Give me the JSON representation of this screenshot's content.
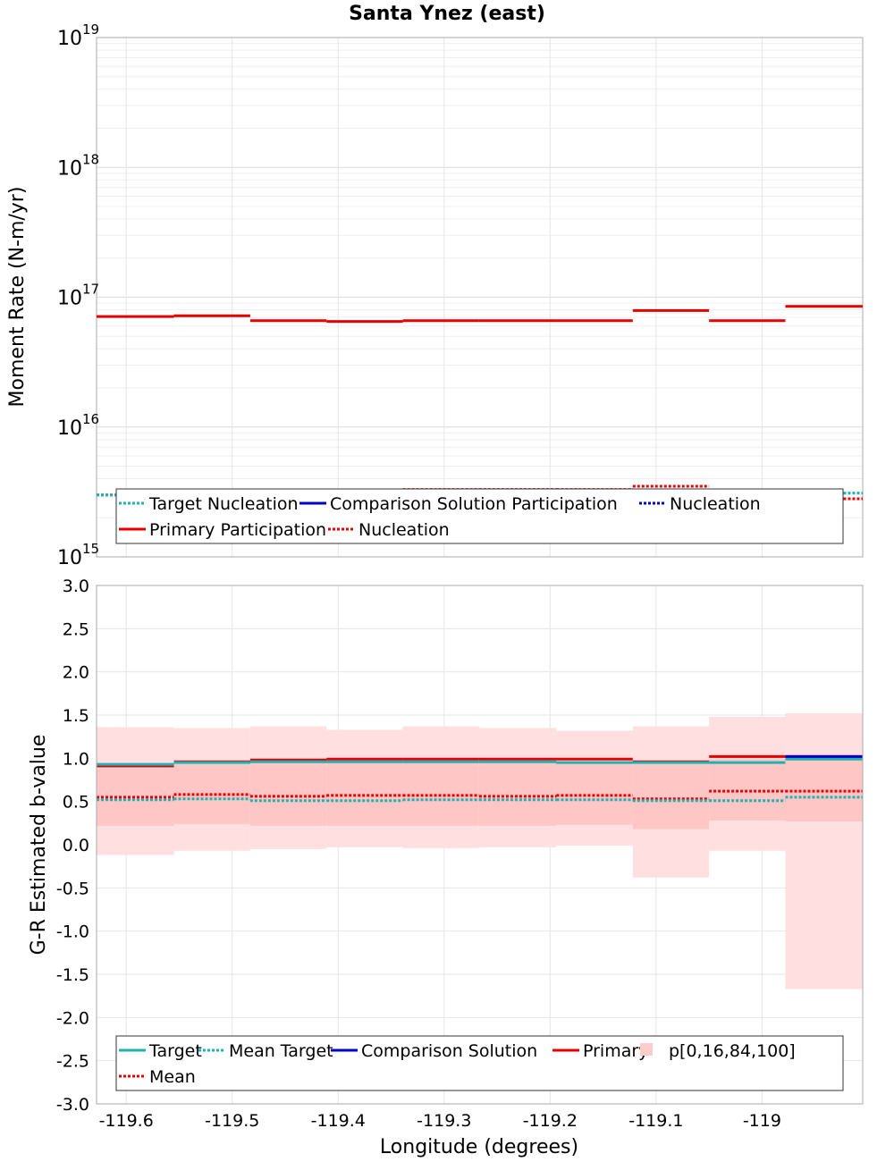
{
  "chart_data": [
    {
      "type": "line",
      "title": "Santa Ynez (east)",
      "ylabel": "Moment Rate (N-m/yr)",
      "yscale": "log",
      "ylim": [
        1000000000000000.0,
        1e+19
      ],
      "y_ticks": [
        {
          "base": "10",
          "exp": "15",
          "value": 1000000000000000.0
        },
        {
          "base": "10",
          "exp": "16",
          "value": 1e+16
        },
        {
          "base": "10",
          "exp": "17",
          "value": 1e+17
        },
        {
          "base": "10",
          "exp": "18",
          "value": 1e+18
        },
        {
          "base": "10",
          "exp": "19",
          "value": 1e+19
        }
      ],
      "x_edges": [
        -119.628,
        -119.555,
        -119.483,
        -119.411,
        -119.339,
        -119.267,
        -119.194,
        -119.122,
        -119.05,
        -118.978,
        -118.905
      ],
      "grid": true,
      "legend_placement": "bottom",
      "legend": [
        {
          "label": "Target Nucleation",
          "color": "#1fb2b2",
          "dash": "dotted"
        },
        {
          "label": "Comparison Solution Participation",
          "color": "#0000cc",
          "dash": "solid"
        },
        {
          "label": "Nucleation",
          "color": "#0000cc",
          "dash": "dotted"
        },
        {
          "label": "Primary Participation",
          "color": "#e60000",
          "dash": "solid"
        },
        {
          "label": "Nucleation",
          "color": "#e60000",
          "dash": "dotted"
        }
      ],
      "series": [
        {
          "name": "Primary Participation",
          "color": "#e60000",
          "dash": "solid",
          "values": [
            7.1e+16,
            7.2e+16,
            6.6e+16,
            6.5e+16,
            6.6e+16,
            6.6e+16,
            6.6e+16,
            7.9e+16,
            6.6e+16,
            8.5e+16
          ]
        },
        {
          "name": "Nucleation",
          "color": "#e60000",
          "dash": "dotted",
          "values": [
            3000000000000000.0,
            3100000000000000.0,
            3200000000000000.0,
            3200000000000000.0,
            3300000000000000.0,
            3300000000000000.0,
            3300000000000000.0,
            3500000000000000.0,
            2900000000000000.0,
            2800000000000000.0
          ]
        },
        {
          "name": "Target Nucleation",
          "color": "#1fb2b2",
          "dash": "dotted",
          "values": [
            3000000000000000.0,
            3100000000000000.0,
            3100000000000000.0,
            3100000000000000.0,
            3100000000000000.0,
            3100000000000000.0,
            3100000000000000.0,
            3200000000000000.0,
            3200000000000000.0,
            3100000000000000.0
          ]
        }
      ]
    },
    {
      "type": "line",
      "xlabel": "Longitude (degrees)",
      "ylabel": "G-R Estimated b-value",
      "ylim": [
        -3.0,
        3.0
      ],
      "y_ticks": [
        "-3.0",
        "-2.5",
        "-2.0",
        "-1.5",
        "-1.0",
        "-0.5",
        "0.0",
        "0.5",
        "1.0",
        "1.5",
        "2.0",
        "2.5",
        "3.0"
      ],
      "x_ticks": [
        {
          "label": "-119.6",
          "value": -119.6
        },
        {
          "label": "-119.5",
          "value": -119.5
        },
        {
          "label": "-119.4",
          "value": -119.4
        },
        {
          "label": "-119.3",
          "value": -119.3
        },
        {
          "label": "-119.2",
          "value": -119.2
        },
        {
          "label": "-119.1",
          "value": -119.1
        },
        {
          "label": "-119",
          "value": -119.0
        }
      ],
      "xlim": [
        -119.628,
        -118.905
      ],
      "x_edges": [
        -119.628,
        -119.555,
        -119.483,
        -119.411,
        -119.339,
        -119.267,
        -119.194,
        -119.122,
        -119.05,
        -118.978,
        -118.905
      ],
      "grid": true,
      "legend_placement": "bottom",
      "legend": [
        {
          "label": "Target",
          "color": "#1fb2b2",
          "dash": "solid"
        },
        {
          "label": "Mean Target",
          "color": "#1fb2b2",
          "dash": "dotted"
        },
        {
          "label": "Comparison Solution",
          "color": "#0000cc",
          "dash": "solid"
        },
        {
          "label": "Primary",
          "color": "#e60000",
          "dash": "solid"
        },
        {
          "label": "p[0,16,84,100]",
          "color": "#ffcccc",
          "dash": "fill"
        },
        {
          "label": "Mean",
          "color": "#e60000",
          "dash": "dotted"
        }
      ],
      "bands": {
        "p0": [
          -0.12,
          -0.07,
          -0.05,
          -0.03,
          -0.04,
          -0.03,
          -0.01,
          -0.38,
          -0.07,
          -1.67
        ],
        "p16": [
          0.22,
          0.24,
          0.22,
          0.22,
          0.22,
          0.22,
          0.23,
          0.18,
          0.28,
          0.27
        ],
        "p84": [
          0.88,
          0.93,
          0.95,
          0.96,
          0.96,
          0.96,
          0.95,
          0.93,
          0.99,
          0.98
        ],
        "p100": [
          1.36,
          1.35,
          1.37,
          1.33,
          1.37,
          1.35,
          1.32,
          1.37,
          1.48,
          1.52
        ]
      },
      "series": [
        {
          "name": "Primary",
          "color": "#e60000",
          "dash": "solid",
          "values": [
            0.91,
            0.96,
            0.98,
            0.99,
            0.99,
            0.99,
            0.99,
            0.96,
            1.02,
            1.02
          ]
        },
        {
          "name": "Target",
          "color": "#1fb2b2",
          "dash": "solid",
          "values": [
            0.93,
            0.95,
            0.96,
            0.96,
            0.96,
            0.96,
            0.95,
            0.95,
            0.95,
            0.99
          ]
        },
        {
          "name": "Comparison Solution",
          "color": "#0000cc",
          "dash": "solid",
          "values": [
            null,
            null,
            null,
            null,
            null,
            null,
            null,
            null,
            null,
            1.02
          ]
        },
        {
          "name": "Mean",
          "color": "#e60000",
          "dash": "dotted",
          "values": [
            0.55,
            0.58,
            0.56,
            0.57,
            0.57,
            0.56,
            0.57,
            0.53,
            0.62,
            0.62
          ]
        },
        {
          "name": "Mean Target",
          "color": "#1fb2b2",
          "dash": "dotted",
          "values": [
            0.52,
            0.53,
            0.51,
            0.51,
            0.52,
            0.52,
            0.52,
            0.51,
            0.51,
            0.55
          ]
        }
      ]
    }
  ]
}
